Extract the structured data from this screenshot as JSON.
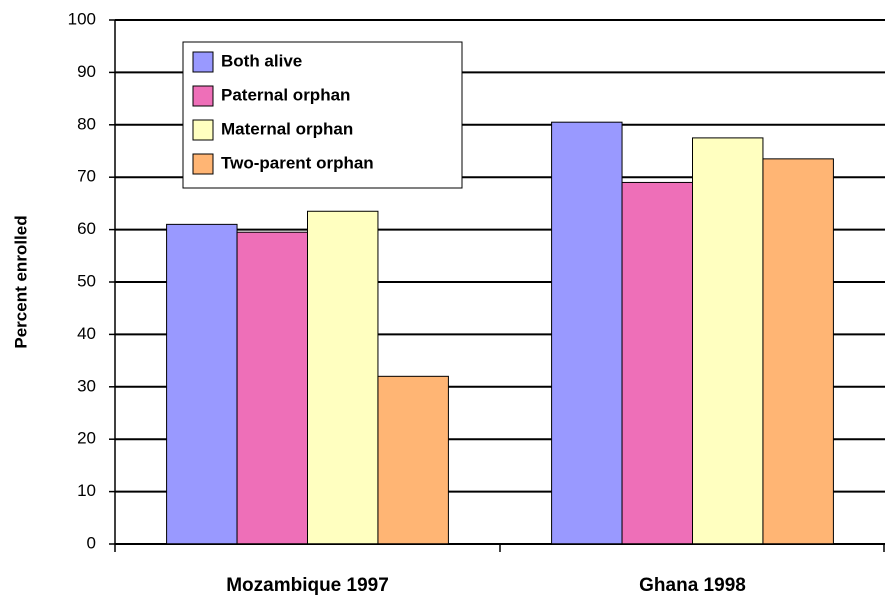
{
  "chart_data": {
    "type": "bar",
    "y_label": "Percent enrolled",
    "categories": [
      "Mozambique 1997",
      "Ghana 1998"
    ],
    "series": [
      {
        "name": "Both alive",
        "color": "#9999ff",
        "values": [
          61,
          80.5
        ]
      },
      {
        "name": "Paternal orphan",
        "color": "#ee6fb8",
        "values": [
          59.5,
          69
        ]
      },
      {
        "name": "Maternal orphan",
        "color": "#ffffc0",
        "values": [
          63.5,
          77.5
        ]
      },
      {
        "name": "Two-parent orphan",
        "color": "#ffb574",
        "values": [
          32,
          73.5
        ]
      }
    ],
    "ylim": [
      0,
      100
    ],
    "yticks": [
      0,
      10,
      20,
      30,
      40,
      50,
      60,
      70,
      80,
      90,
      100
    ],
    "grid": true,
    "legend": "upper left"
  }
}
